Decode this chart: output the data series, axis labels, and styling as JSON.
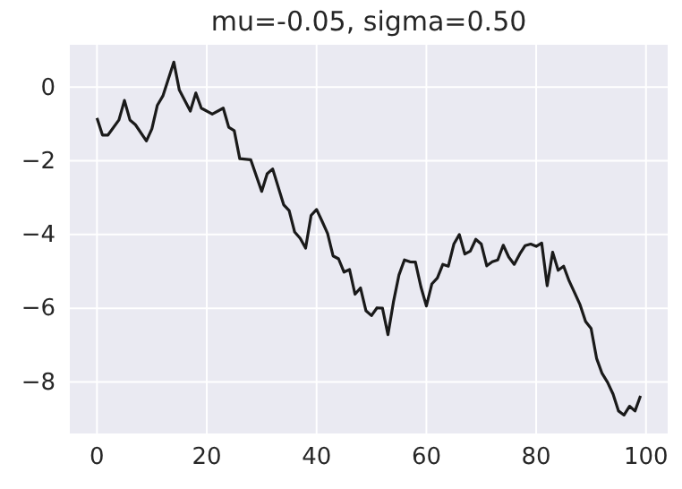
{
  "chart_data": {
    "type": "line",
    "title": "mu=-0.05, sigma=0.50",
    "x": [
      0,
      1,
      2,
      4,
      5,
      6,
      7,
      9,
      10,
      11,
      12,
      14,
      15,
      17,
      18,
      19,
      21,
      23,
      24,
      25,
      26,
      28,
      30,
      31,
      32,
      34,
      35,
      36,
      37,
      38,
      39,
      40,
      41,
      42,
      43,
      44,
      45,
      46,
      47,
      48,
      49,
      50,
      51,
      52,
      53,
      54,
      55,
      56,
      57,
      58,
      59,
      60,
      61,
      62,
      63,
      64,
      65,
      66,
      67,
      68,
      69,
      70,
      71,
      72,
      73,
      74,
      75,
      76,
      77,
      78,
      79,
      80,
      81,
      82,
      83,
      84,
      85,
      86,
      87,
      88,
      89,
      90,
      91,
      92,
      93,
      94,
      95,
      96,
      97,
      98,
      99
    ],
    "series": [
      {
        "color": "#1a1a1a",
        "values": [
          -0.84,
          -1.3,
          -1.3,
          -0.89,
          -0.36,
          -0.89,
          -1.02,
          -1.46,
          -1.13,
          -0.49,
          -0.24,
          0.68,
          -0.08,
          -0.65,
          -0.16,
          -0.57,
          -0.73,
          -0.57,
          -1.09,
          -1.18,
          -1.94,
          -1.97,
          -2.83,
          -2.35,
          -2.22,
          -3.19,
          -3.35,
          -3.93,
          -4.1,
          -4.37,
          -3.48,
          -3.32,
          -3.64,
          -3.97,
          -4.58,
          -4.66,
          -5.02,
          -4.95,
          -5.62,
          -5.45,
          -6.07,
          -6.2,
          -5.99,
          -6.0,
          -6.72,
          -5.83,
          -5.1,
          -4.69,
          -4.74,
          -4.75,
          -5.42,
          -5.94,
          -5.34,
          -5.18,
          -4.81,
          -4.86,
          -4.26,
          -4.0,
          -4.53,
          -4.45,
          -4.13,
          -4.26,
          -4.85,
          -4.74,
          -4.69,
          -4.29,
          -4.61,
          -4.81,
          -4.53,
          -4.3,
          -4.26,
          -4.32,
          -4.23,
          -5.39,
          -4.48,
          -4.97,
          -4.86,
          -5.26,
          -5.58,
          -5.91,
          -6.36,
          -6.55,
          -7.36,
          -7.77,
          -8.01,
          -8.33,
          -8.79,
          -8.9,
          -8.66,
          -8.79,
          -8.38
        ]
      }
    ],
    "xlim": [
      -4.95,
      103.95
    ],
    "ylim": [
      -9.4,
      1.15
    ],
    "xticks": [
      0,
      20,
      40,
      60,
      80,
      100
    ],
    "yticks": [
      0,
      -2,
      -4,
      -6,
      -8
    ],
    "grid": true,
    "line_style": "solid"
  }
}
